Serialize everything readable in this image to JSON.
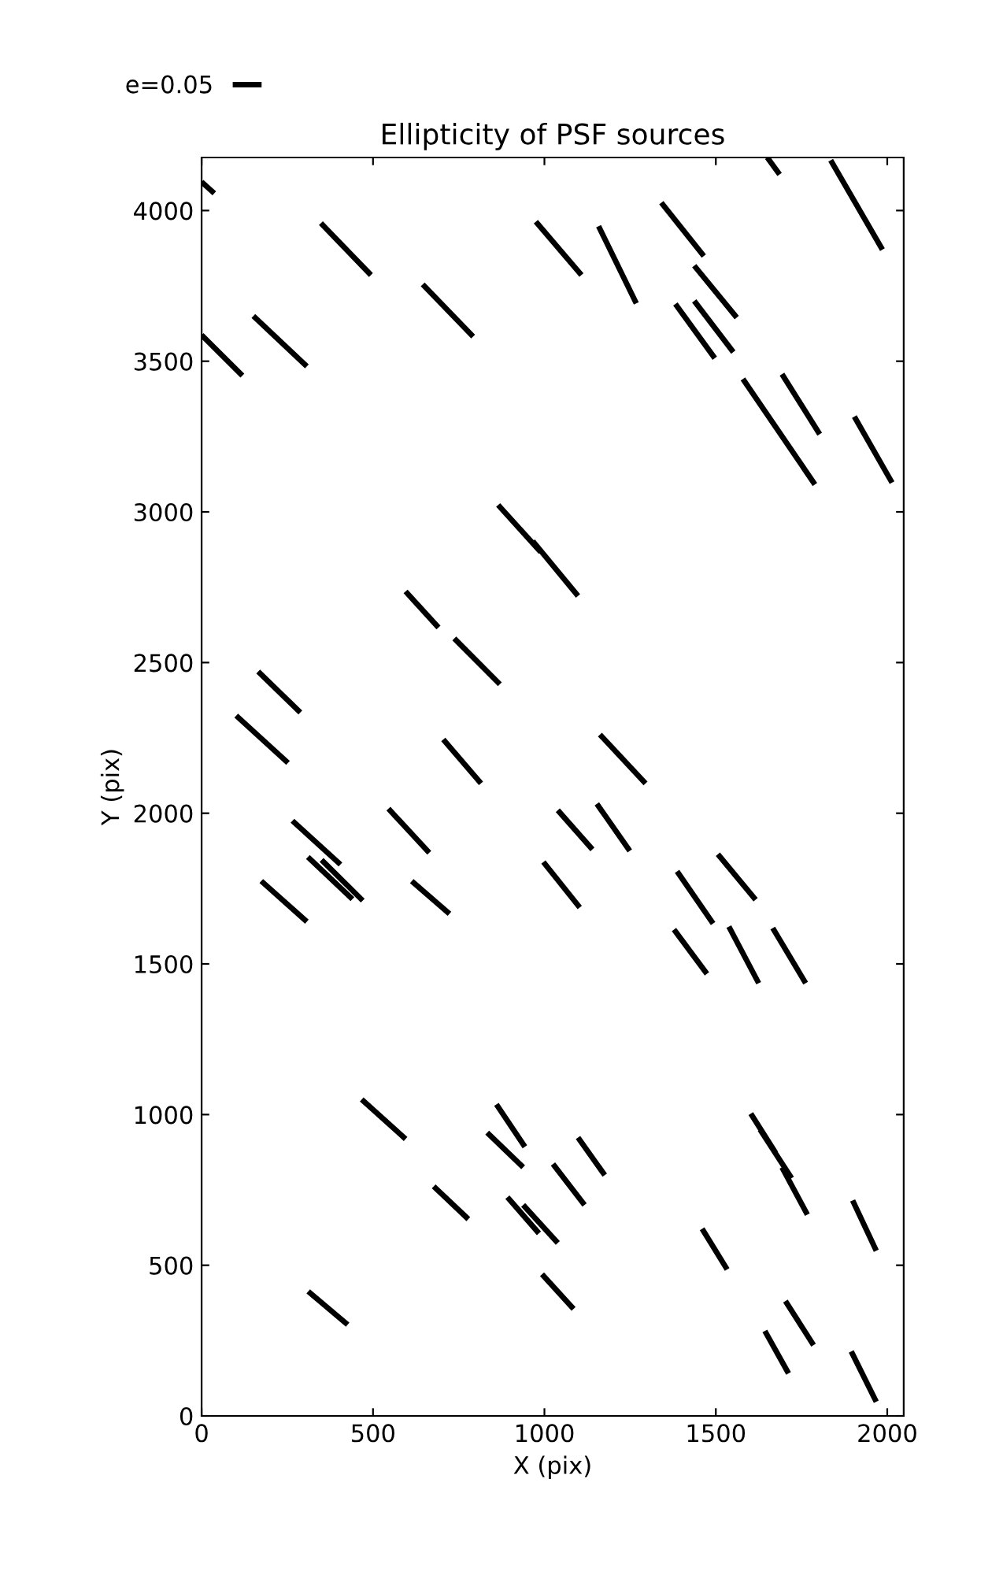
{
  "chart_data": {
    "type": "line",
    "title": "Ellipticity of PSF sources",
    "xlabel": "X (pix)",
    "ylabel": "Y (pix)",
    "xlim": [
      0,
      2048
    ],
    "ylim": [
      0,
      4176
    ],
    "xticks": [
      0,
      500,
      1000,
      1500,
      2000
    ],
    "yticks": [
      0,
      500,
      1000,
      1500,
      2000,
      2500,
      3000,
      3500,
      4000
    ],
    "grid": false,
    "legend": "top left",
    "marker": "none",
    "line_style": "solid",
    "series": [
      {
        "name": "e=0.05",
        "color": "#000000",
        "x": [
          0,
          37,
          null,
          348,
          494,
          null,
          0,
          119,
          null,
          151,
          307,
          null,
          645,
          792,
          null,
          975,
          1108,
          null,
          1158,
          1268,
          null,
          1341,
          1465,
          null,
          1437,
          1561,
          null,
          1382,
          1497,
          null,
          1437,
          1551,
          null,
          1650,
          1686,
          null,
          1835,
          1986,
          null,
          1579,
          1789,
          null,
          1693,
          1803,
          null,
          1904,
          2014,
          null,
          865,
          989,
          null,
          966,
          1098,
          null,
          595,
          691,
          null,
          737,
          870,
          null,
          165,
          288,
          null,
          101,
          252,
          null,
          705,
          815,
          null,
          1162,
          1295,
          null,
          265,
          405,
          null,
          310,
          440,
          null,
          350,
          470,
          null,
          174,
          307,
          null,
          545,
          664,
          null,
          613,
          723,
          null,
          1039,
          1140,
          null,
          1153,
          1249,
          null,
          997,
          1103,
          null,
          1387,
          1492,
          null,
          1506,
          1616,
          null,
          1378,
          1474,
          null,
          1538,
          1625,
          null,
          1666,
          1762,
          null,
          467,
          595,
          null,
          860,
          943,
          null,
          833,
          938,
          null,
          1098,
          1176,
          null,
          1025,
          1117,
          null,
          677,
          778,
          null,
          892,
          984,
          null,
          938,
          1039,
          null,
          1602,
          1675,
          null,
          1629,
          1721,
          null,
          1693,
          1767,
          null,
          1899,
          1968,
          null,
          1460,
          1533,
          null,
          311,
          426,
          null,
          993,
          1085,
          null,
          1703,
          1785,
          null,
          1643,
          1712,
          null,
          1895,
          1968
        ],
        "values": [
          4095,
          4057,
          null,
          3958,
          3786,
          null,
          3587,
          3452,
          null,
          3650,
          3483,
          null,
          3755,
          3582,
          null,
          3963,
          3786,
          null,
          3948,
          3692,
          null,
          4026,
          3849,
          null,
          3817,
          3645,
          null,
          3690,
          3510,
          null,
          3700,
          3530,
          null,
          4176,
          4120,
          null,
          4167,
          3870,
          null,
          3441,
          3091,
          null,
          3457,
          3258,
          null,
          3316,
          3097,
          null,
          3023,
          2867,
          null,
          2903,
          2721,
          null,
          2736,
          2616,
          null,
          2580,
          2428,
          null,
          2470,
          2334,
          null,
          2324,
          2167,
          null,
          2245,
          2099,
          null,
          2261,
          2099,
          null,
          1975,
          1830,
          null,
          1855,
          1715,
          null,
          1845,
          1710,
          null,
          1775,
          1640,
          null,
          2015,
          1869,
          null,
          1775,
          1666,
          null,
          2010,
          1880,
          null,
          2031,
          1875,
          null,
          1838,
          1687,
          null,
          1807,
          1634,
          null,
          1864,
          1713,
          null,
          1614,
          1467,
          null,
          1624,
          1436,
          null,
          1619,
          1436,
          null,
          1050,
          919,
          null,
          1034,
          893,
          null,
          940,
          825,
          null,
          924,
          799,
          null,
          836,
          700,
          null,
          762,
          653,
          null,
          726,
          606,
          null,
          700,
          574,
          null,
          1003,
          872,
          null,
          950,
          789,
          null,
          825,
          668,
          null,
          715,
          548,
          null,
          621,
          486,
          null,
          413,
          303,
          null,
          470,
          355,
          null,
          381,
          235,
          null,
          282,
          141,
          null,
          214,
          47
        ]
      }
    ]
  }
}
